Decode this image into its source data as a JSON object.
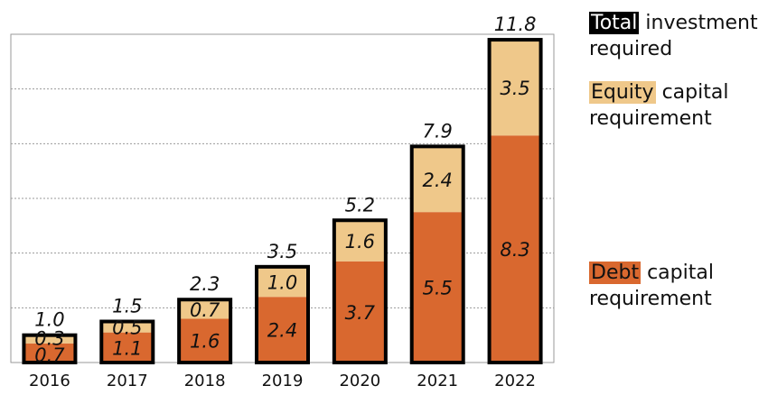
{
  "chart_data": {
    "type": "bar",
    "stacked": true,
    "categories": [
      "2016",
      "2017",
      "2018",
      "2019",
      "2020",
      "2021",
      "2022"
    ],
    "series": [
      {
        "name": "Debt capital requirement",
        "values": [
          0.7,
          1.1,
          1.6,
          2.4,
          3.7,
          5.5,
          8.3
        ],
        "color": "#d9682f"
      },
      {
        "name": "Equity capital requirement",
        "values": [
          0.3,
          0.5,
          0.7,
          1.0,
          1.6,
          2.4,
          3.5
        ],
        "color": "#efc88a"
      }
    ],
    "totals": [
      1.0,
      1.5,
      2.3,
      3.5,
      5.2,
      7.9,
      11.8
    ],
    "debt_labels": [
      "0.7",
      "1.1",
      "1.6",
      "2.4",
      "3.7",
      "5.5",
      "8.3"
    ],
    "equity_labels": [
      "0.3",
      "0.5",
      "0.7",
      "1.0",
      "1.6",
      "2.4",
      "3.5"
    ],
    "total_labels": [
      "1.0",
      "1.5",
      "2.3",
      "3.5",
      "5.2",
      "7.9",
      "11.8"
    ],
    "ylim": [
      0,
      12
    ],
    "gridlines": [
      2,
      4,
      6,
      8,
      10
    ],
    "grid": true,
    "legend_position": "right"
  },
  "legend": {
    "total_key": "Total",
    "total_rest": " investment",
    "total_line2": "required",
    "equity_key": "Equity",
    "equity_rest": " capital",
    "equity_line2": "requirement",
    "debt_key": "Debt",
    "debt_rest": " capital",
    "debt_line2": "requirement"
  },
  "colors": {
    "debt": "#d9682f",
    "equity": "#efc88a",
    "total_key_bg": "#000000",
    "total_key_text": "#ffffff"
  }
}
